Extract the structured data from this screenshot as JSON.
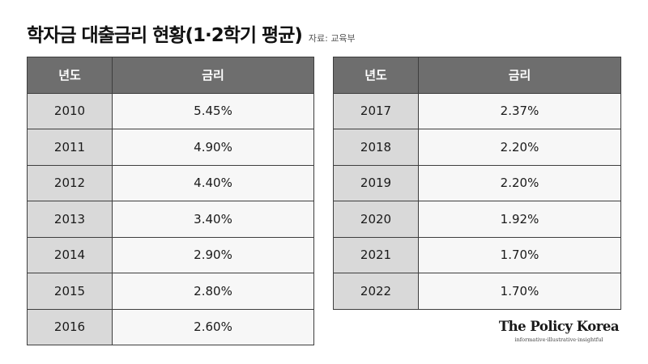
{
  "title": "학자금 대출금리 현황(1·2학기 평균)",
  "source": "자료: 교육부",
  "brand": {
    "name": "The Policy Korea",
    "tagline": "informative·illustrative·insightful"
  },
  "chart_data": {
    "type": "table",
    "title": "학자금 대출금리 현황(1·2학기 평균)",
    "columns": [
      "년도",
      "금리"
    ],
    "tables": [
      {
        "rows": [
          [
            "2010",
            "5.45%"
          ],
          [
            "2011",
            "4.90%"
          ],
          [
            "2012",
            "4.40%"
          ],
          [
            "2013",
            "3.40%"
          ],
          [
            "2014",
            "2.90%"
          ],
          [
            "2015",
            "2.80%"
          ],
          [
            "2016",
            "2.60%"
          ]
        ]
      },
      {
        "rows": [
          [
            "2017",
            "2.37%"
          ],
          [
            "2018",
            "2.20%"
          ],
          [
            "2019",
            "2.20%"
          ],
          [
            "2020",
            "1.92%"
          ],
          [
            "2021",
            "1.70%"
          ],
          [
            "2022",
            "1.70%"
          ]
        ]
      }
    ]
  }
}
